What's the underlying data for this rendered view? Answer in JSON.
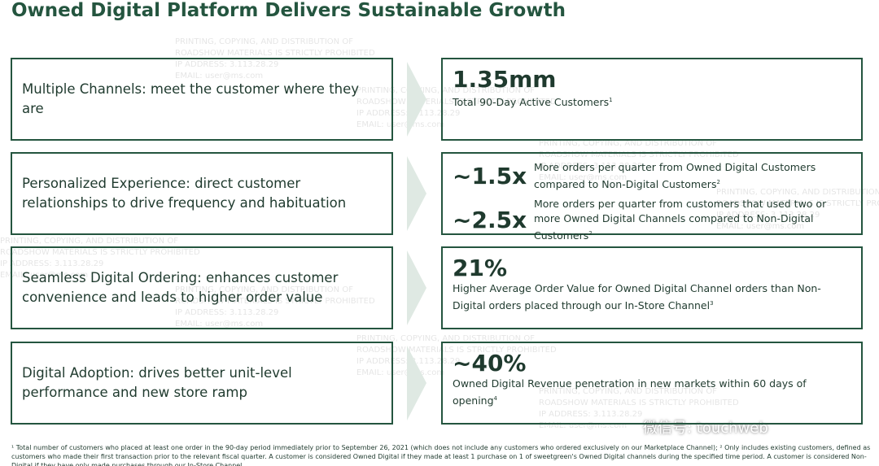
{
  "title": "Owned Digital Platform Delivers Sustainable Growth",
  "pillars": [
    "Multiple Channels: meet the customer where they are",
    "Personalized Experience: direct customer relationships to drive frequency and habituation",
    "Seamless Digital Ordering: enhances customer convenience and leads to higher order value",
    "Digital Adoption: drives better unit-level performance and new store ramp"
  ],
  "metrics": [
    {
      "layout": "stacked",
      "items": [
        {
          "value": "1.35mm",
          "text": "Total 90-Day Active Customers",
          "note": "1"
        }
      ]
    },
    {
      "layout": "inline",
      "items": [
        {
          "value": "~1.5x",
          "text": "More orders per quarter from Owned Digital Customers compared to Non-Digital Customers",
          "note": "2"
        },
        {
          "value": "~2.5x",
          "text": "More orders per quarter from customers that used two or more Owned Digital Channels compared to Non-Digital Customers",
          "note": "2"
        }
      ]
    },
    {
      "layout": "stacked",
      "items": [
        {
          "value": "21%",
          "text": "Higher Average Order Value for Owned Digital Channel orders than Non-Digital orders placed through our In-Store Channel",
          "note": "3"
        }
      ]
    },
    {
      "layout": "stacked",
      "items": [
        {
          "value": "~40%",
          "text": "Owned Digital Revenue penetration in new markets within 60 days of opening",
          "note": "4"
        }
      ]
    }
  ],
  "footnote": "¹ Total number of customers who placed at least one order in the 90-day period immediately prior to September 26, 2021 (which does not include any customers who ordered exclusively on our Marketplace Channel); ² Only includes existing customers, defined as customers who made their first transaction prior to the relevant fiscal quarter. A customer is considered Owned Digital if they made at least 1 purchase on 1 of sweetgreen's Owned Digital channels during the specified time period. A customer is considered Non-Digital if they have only made purchases through our In-Store Channel",
  "watermark": [
    "PRINTING, COPYING, AND DISTRIBUTION OF",
    "ROADSHOW MATERIALS IS STRICTLY PROHIBITED",
    "IP ADDRESS: 3.113.28.29",
    "EMAIL: user@ms.com"
  ],
  "wechat": "微信号: touchweb"
}
